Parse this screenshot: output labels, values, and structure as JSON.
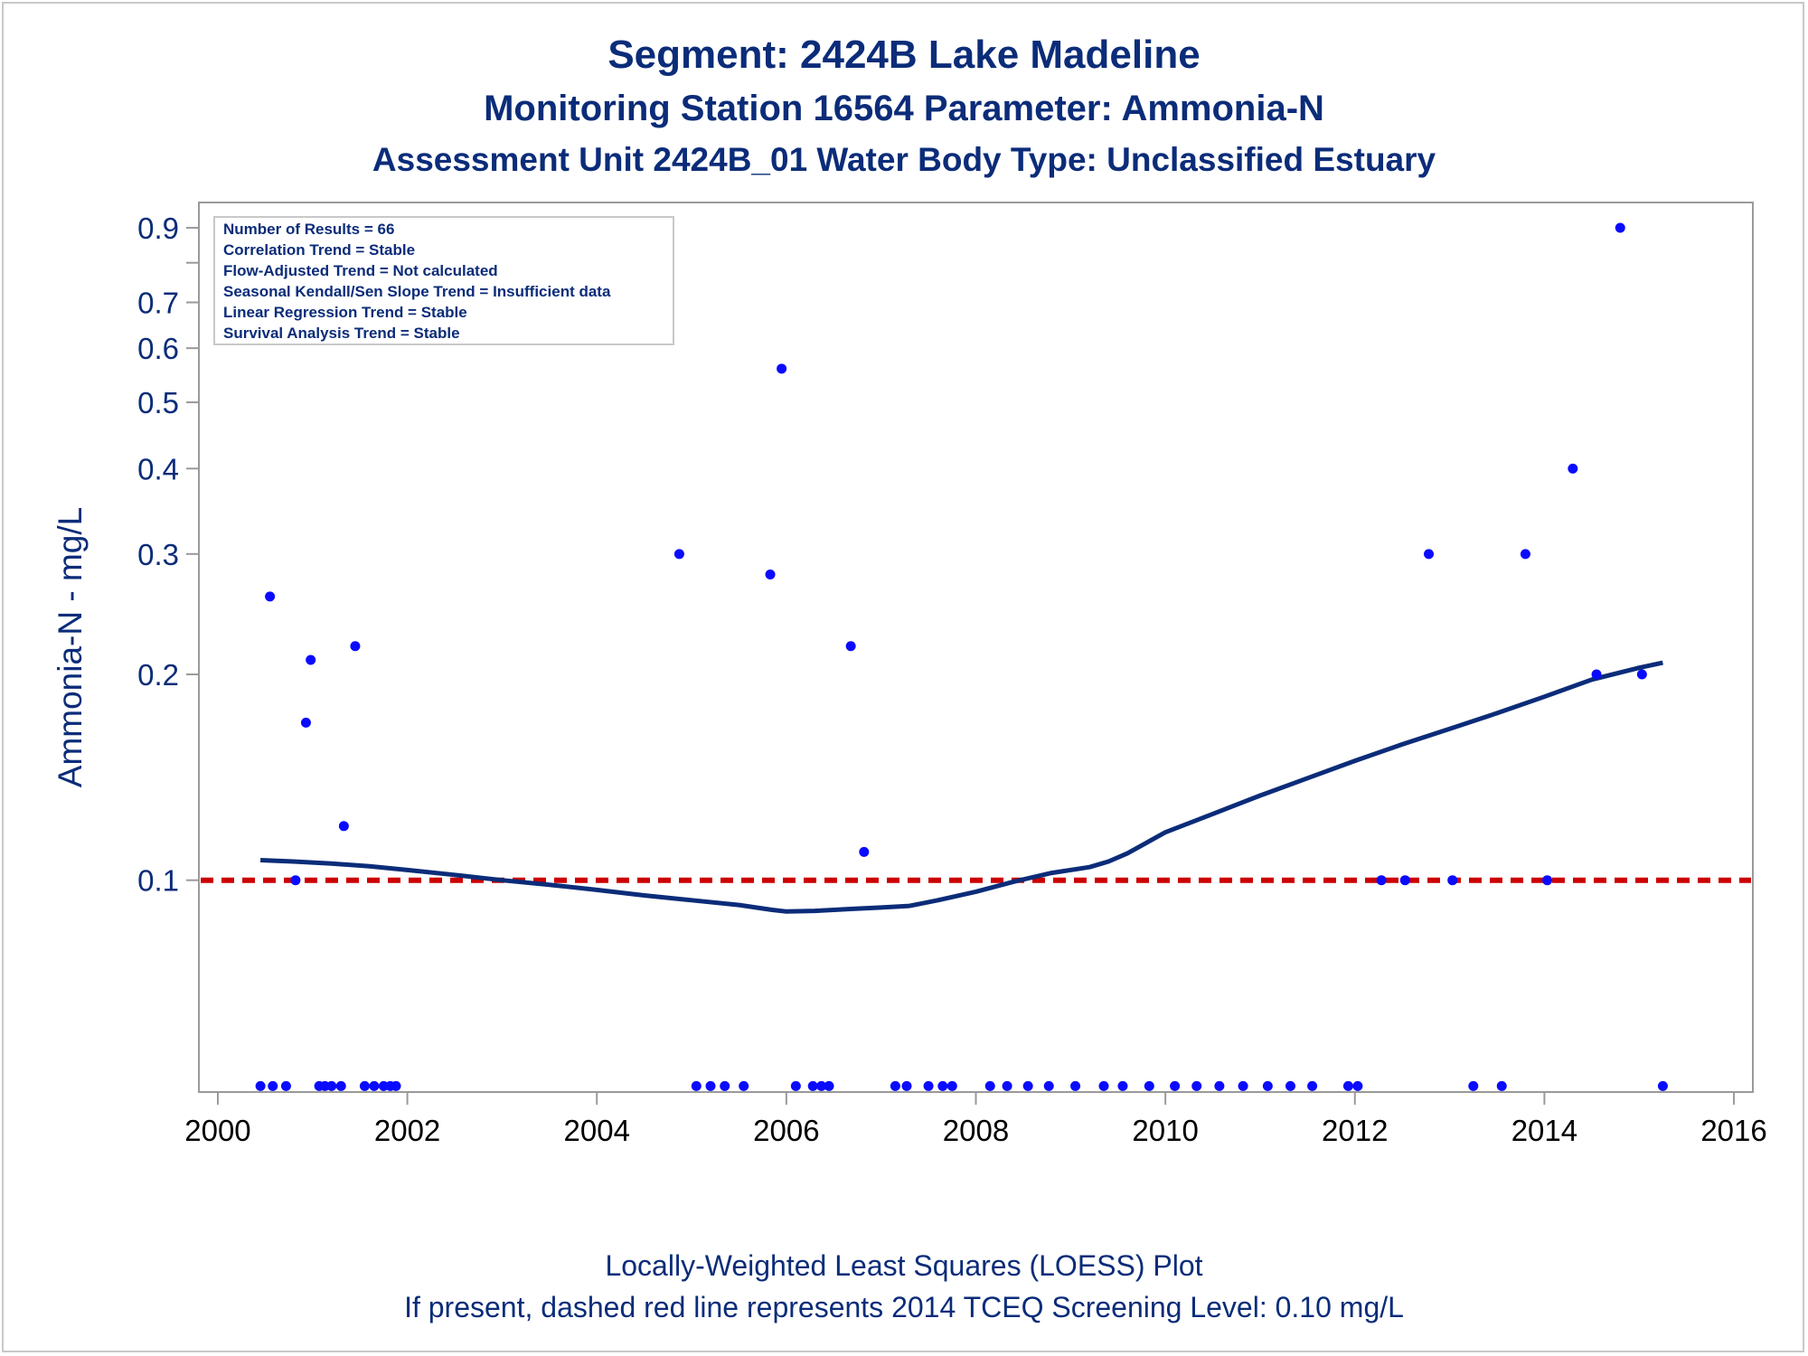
{
  "chart_data": {
    "type": "scatter",
    "title": "Segment: 2424B  Lake Madeline",
    "subtitle": "Monitoring Station 16564 Parameter: Ammonia-N",
    "subtitle2": "Assessment Unit 2424B_01   Water Body Type: Unclassified Estuary",
    "xlabel": "",
    "ylabel": "Ammonia-N - mg/L",
    "footnote1": "Locally-Weighted Least Squares (LOESS) Plot",
    "footnote2": "If present, dashed red line represents 2014 TCEQ Screening Level: 0.10 mg/L",
    "x_axis": {
      "scale": "linear",
      "range": [
        1999.8,
        2016.2
      ],
      "ticks": [
        2000,
        2002,
        2004,
        2006,
        2008,
        2010,
        2012,
        2014,
        2016
      ],
      "tick_labels": [
        "2000",
        "2002",
        "2004",
        "2006",
        "2008",
        "2010",
        "2012",
        "2014",
        "2016"
      ]
    },
    "y_axis": {
      "scale": "log",
      "range": [
        0.049,
        0.98
      ],
      "ticks": [
        0.1,
        0.2,
        0.3,
        0.4,
        0.5,
        0.6,
        0.7,
        0.8,
        0.9
      ],
      "tick_labels": [
        "0.1",
        "0.2",
        "0.3",
        "0.4",
        "0.5",
        "0.6",
        "0.7",
        "",
        "0.9"
      ]
    },
    "grid": false,
    "stats_box": {
      "placement": "top-left",
      "lines": [
        "Number of Results = 66",
        "Correlation Trend = Stable",
        "Flow-Adjusted Trend = Not calculated",
        "Seasonal Kendall/Sen Slope Trend = Insufficient data",
        "Linear Regression Trend = Stable",
        "Survival Analysis Trend = Stable"
      ]
    },
    "screening_level": {
      "value": 0.1,
      "color": "#cc0000",
      "style": "dashed"
    },
    "colors": {
      "points": "#0a0aff",
      "loess": "#0b2c79",
      "text": "#0b2c79",
      "axis": "#9a9a9a"
    },
    "series": [
      {
        "kind": "points",
        "points": [
          [
            2000.55,
            0.26
          ],
          [
            2000.82,
            0.1
          ],
          [
            2000.98,
            0.21
          ],
          [
            2000.93,
            0.17
          ],
          [
            2001.33,
            0.12
          ],
          [
            2001.45,
            0.22
          ],
          [
            2004.87,
            0.3
          ],
          [
            2005.83,
            0.28
          ],
          [
            2005.95,
            0.56
          ],
          [
            2006.68,
            0.22
          ],
          [
            2006.82,
            0.11
          ],
          [
            2012.28,
            0.1
          ],
          [
            2012.53,
            0.1
          ],
          [
            2012.78,
            0.3
          ],
          [
            2013.03,
            0.1
          ],
          [
            2013.8,
            0.3
          ],
          [
            2014.03,
            0.1
          ],
          [
            2014.3,
            0.4
          ],
          [
            2014.55,
            0.2
          ],
          [
            2014.8,
            0.9
          ],
          [
            2015.03,
            0.2
          ]
        ],
        "censored_points_x": [
          2000.45,
          2000.58,
          2000.72,
          2001.07,
          2001.13,
          2001.2,
          2001.3,
          2001.55,
          2001.65,
          2001.75,
          2001.82,
          2001.88,
          2005.05,
          2005.2,
          2005.35,
          2005.55,
          2006.1,
          2006.28,
          2006.37,
          2006.45,
          2007.15,
          2007.27,
          2007.5,
          2007.65,
          2007.75,
          2008.15,
          2008.33,
          2008.55,
          2008.77,
          2009.05,
          2009.35,
          2009.55,
          2009.83,
          2010.1,
          2010.33,
          2010.57,
          2010.82,
          2011.08,
          2011.32,
          2011.55,
          2011.93,
          2012.03,
          2013.25,
          2013.55,
          2015.25
        ],
        "censored_value": 0.05
      },
      {
        "kind": "loess",
        "points": [
          [
            2000.45,
            0.107
          ],
          [
            2000.8,
            0.1065
          ],
          [
            2001.2,
            0.1058
          ],
          [
            2001.6,
            0.1048
          ],
          [
            2002.0,
            0.1035
          ],
          [
            2002.5,
            0.1018
          ],
          [
            2003.0,
            0.1
          ],
          [
            2003.5,
            0.0985
          ],
          [
            2004.0,
            0.0968
          ],
          [
            2004.5,
            0.095
          ],
          [
            2005.0,
            0.0935
          ],
          [
            2005.5,
            0.092
          ],
          [
            2005.85,
            0.0905
          ],
          [
            2006.0,
            0.09
          ],
          [
            2006.3,
            0.0902
          ],
          [
            2006.7,
            0.0908
          ],
          [
            2007.0,
            0.0912
          ],
          [
            2007.3,
            0.0917
          ],
          [
            2007.6,
            0.0935
          ],
          [
            2008.0,
            0.0962
          ],
          [
            2008.4,
            0.0995
          ],
          [
            2008.8,
            0.1025
          ],
          [
            2009.2,
            0.1045
          ],
          [
            2009.4,
            0.1065
          ],
          [
            2009.6,
            0.1095
          ],
          [
            2010.0,
            0.1175
          ],
          [
            2010.5,
            0.125
          ],
          [
            2011.0,
            0.133
          ],
          [
            2011.5,
            0.141
          ],
          [
            2012.0,
            0.1495
          ],
          [
            2012.5,
            0.158
          ],
          [
            2013.0,
            0.1665
          ],
          [
            2013.5,
            0.1755
          ],
          [
            2014.0,
            0.1855
          ],
          [
            2014.5,
            0.1965
          ],
          [
            2015.0,
            0.2045
          ],
          [
            2015.25,
            0.208
          ]
        ]
      }
    ]
  }
}
